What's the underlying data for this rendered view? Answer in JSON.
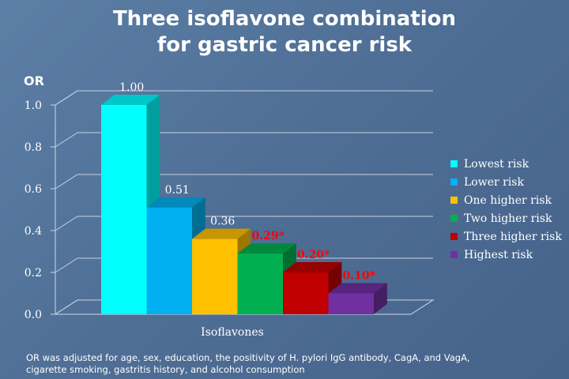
{
  "slide": {
    "title_line1": "Three isoflavone combination",
    "title_line2": "for gastric cancer risk",
    "footnote_line1": "OR was adjusted for age, sex, education, the positivity of H. pylori IgG antibody, CagA, and VagA,",
    "footnote_line2": "cigarette smoking, gastritis history, and alcohol consumption"
  },
  "chart_data": {
    "type": "bar",
    "title": "",
    "ylabel": "OR",
    "xlabel": "Isoflavones",
    "ylim": [
      0,
      1.0
    ],
    "yticks": [
      "0.0",
      "0.2",
      "0.4",
      "0.6",
      "0.8",
      "1.0"
    ],
    "three_d": true,
    "grid": true,
    "legend_position": "right",
    "series": [
      {
        "name": "Lowest risk",
        "value": 1.0,
        "label": "1.00",
        "color": "#00ffff",
        "label_color": "#ffffff"
      },
      {
        "name": "Lower risk",
        "value": 0.51,
        "label": "0.51",
        "color": "#00b0f0",
        "label_color": "#ffffff"
      },
      {
        "name": "One higher risk",
        "value": 0.36,
        "label": "0.36",
        "color": "#ffc000",
        "label_color": "#ffffff"
      },
      {
        "name": "Two higher risk",
        "value": 0.29,
        "label": "0.29*",
        "color": "#00b050",
        "label_color": "#ff0000"
      },
      {
        "name": "Three higher risk",
        "value": 0.2,
        "label": "0.20*",
        "color": "#c00000",
        "label_color": "#ff0000"
      },
      {
        "name": "Highest risk",
        "value": 0.1,
        "label": "0.10*",
        "color": "#7030a0",
        "label_color": "#ff0000"
      }
    ]
  }
}
